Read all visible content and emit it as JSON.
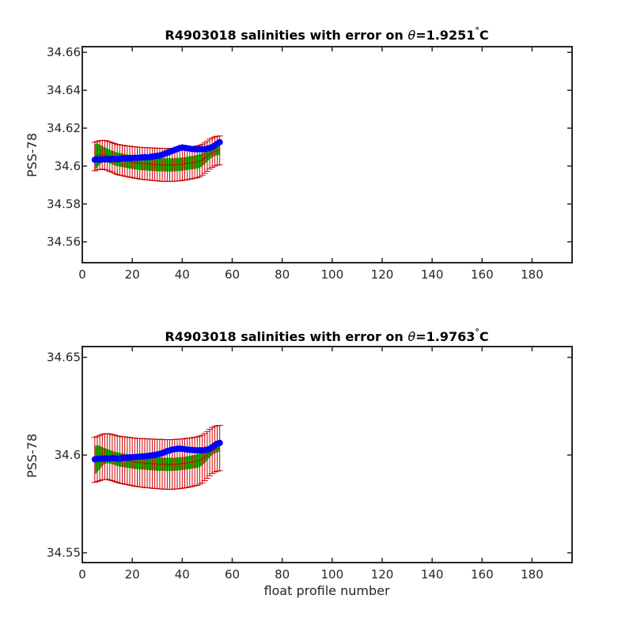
{
  "chart_data": [
    {
      "type": "line",
      "title_prefix": "R4903018 salinities with error on ",
      "title_theta": "θ",
      "title_suffix": "=1.9251",
      "title_degree": "°",
      "title_unit": "C",
      "xlabel": "",
      "ylabel": "PSS-78",
      "xlim": [
        0,
        196
      ],
      "ylim": [
        34.549,
        34.663
      ],
      "x_ticks": [
        0,
        20,
        40,
        60,
        80,
        100,
        120,
        140,
        160,
        180
      ],
      "x_tick_labels": [
        "0",
        "20",
        "40",
        "60",
        "80",
        "100",
        "120",
        "140",
        "160",
        "180"
      ],
      "y_ticks": [
        34.56,
        34.58,
        34.6,
        34.62,
        34.64,
        34.66
      ],
      "y_tick_labels": [
        "34.56",
        "34.58",
        "34.6",
        "34.62",
        "34.64",
        "34.66"
      ],
      "grid": false,
      "colors": {
        "mapped": "#0000ff",
        "band": "#00c000",
        "error": "#cc0000",
        "axes": "#262626"
      },
      "x": [
        5,
        6,
        7,
        8,
        9,
        10,
        11,
        12,
        13,
        14,
        15,
        16,
        17,
        18,
        19,
        20,
        21,
        22,
        23,
        24,
        25,
        26,
        27,
        28,
        29,
        30,
        31,
        32,
        33,
        34,
        35,
        36,
        37,
        38,
        39,
        40,
        41,
        42,
        43,
        44,
        45,
        46,
        47,
        48,
        49,
        50,
        51,
        52,
        53,
        54,
        55
      ],
      "series": [
        {
          "role": "mapped",
          "values": [
            34.6033,
            34.6035,
            34.6034,
            34.6036,
            34.6035,
            34.6037,
            34.6036,
            34.6038,
            34.6037,
            34.6036,
            34.6038,
            34.604,
            34.6041,
            34.604,
            34.6042,
            34.6043,
            34.6044,
            34.6043,
            34.6045,
            34.6046,
            34.6047,
            34.6046,
            34.6048,
            34.605,
            34.6052,
            34.6054,
            34.6056,
            34.606,
            34.6065,
            34.607,
            34.6075,
            34.608,
            34.6085,
            34.609,
            34.6095,
            34.6098,
            34.6096,
            34.6094,
            34.6092,
            34.609,
            34.6089,
            34.6088,
            34.6089,
            34.6088,
            34.609,
            34.6092,
            34.6095,
            34.61,
            34.6108,
            34.6118,
            34.6126
          ]
        },
        {
          "role": "band_upper",
          "values": [
            34.6115,
            34.6118,
            34.6112,
            34.6105,
            34.6098,
            34.6092,
            34.6085,
            34.608,
            34.6075,
            34.607,
            34.6068,
            34.6065,
            34.6062,
            34.606,
            34.6058,
            34.6056,
            34.6054,
            34.6052,
            34.605,
            34.6049,
            34.6048,
            34.6047,
            34.6046,
            34.6045,
            34.6044,
            34.6043,
            34.6042,
            34.6041,
            34.604,
            34.604,
            34.604,
            34.604,
            34.6041,
            34.6042,
            34.6043,
            34.6044,
            34.6046,
            34.6048,
            34.605,
            34.6052,
            34.6055,
            34.6058,
            34.6062,
            34.6066,
            34.6072,
            34.608,
            34.6088,
            34.6095,
            34.61,
            34.6104,
            34.6106
          ]
        },
        {
          "role": "band_lower",
          "values": [
            34.598,
            34.5995,
            34.601,
            34.602,
            34.6022,
            34.602,
            34.6015,
            34.601,
            34.6005,
            34.6,
            34.5998,
            34.5995,
            34.5993,
            34.599,
            34.5988,
            34.5986,
            34.5984,
            34.5982,
            34.598,
            34.5979,
            34.5978,
            34.5977,
            34.5976,
            34.5975,
            34.5974,
            34.5973,
            34.5973,
            34.5973,
            34.5972,
            34.5972,
            34.5972,
            34.5972,
            34.5973,
            34.5974,
            34.5975,
            34.5976,
            34.5978,
            34.598,
            34.5982,
            34.5984,
            34.5986,
            34.5988,
            34.5992,
            34.6,
            34.6012,
            34.6025,
            34.6038,
            34.6048,
            34.6054,
            34.6058,
            34.606
          ]
        },
        {
          "role": "error_center",
          "values": [
            34.605,
            34.6055,
            34.6058,
            34.606,
            34.6058,
            34.6055,
            34.605,
            34.6045,
            34.604,
            34.6035,
            34.6032,
            34.603,
            34.6027,
            34.6025,
            34.6023,
            34.6021,
            34.6019,
            34.6017,
            34.6015,
            34.6014,
            34.6013,
            34.6012,
            34.6011,
            34.601,
            34.6009,
            34.6008,
            34.6007,
            34.6006,
            34.6006,
            34.6006,
            34.6006,
            34.6006,
            34.6007,
            34.6008,
            34.6009,
            34.601,
            34.6012,
            34.6014,
            34.6016,
            34.6018,
            34.602,
            34.6022,
            34.6026,
            34.6033,
            34.6042,
            34.6052,
            34.6063,
            34.6071,
            34.6077,
            34.6081,
            34.6083
          ]
        },
        {
          "role": "error_half",
          "values": [
            0.0075,
            0.0075,
            0.0076,
            0.0076,
            0.0077,
            0.0077,
            0.0078,
            0.0078,
            0.0079,
            0.0079,
            0.008,
            0.008,
            0.0081,
            0.0081,
            0.0082,
            0.0082,
            0.0083,
            0.0083,
            0.0084,
            0.0084,
            0.0085,
            0.0085,
            0.0085,
            0.0086,
            0.0086,
            0.0086,
            0.0087,
            0.0087,
            0.0087,
            0.0087,
            0.0087,
            0.0087,
            0.0087,
            0.0087,
            0.0087,
            0.0086,
            0.0086,
            0.0086,
            0.0085,
            0.0085,
            0.0084,
            0.0084,
            0.0083,
            0.0082,
            0.0081,
            0.008,
            0.0079,
            0.0078,
            0.0077,
            0.0076,
            0.0076
          ]
        }
      ]
    },
    {
      "type": "line",
      "title_prefix": "R4903018 salinities with error on ",
      "title_theta": "θ",
      "title_suffix": "=1.9763",
      "title_degree": "°",
      "title_unit": "C",
      "xlabel": "float profile number",
      "ylabel": "PSS-78",
      "xlim": [
        0,
        196
      ],
      "ylim": [
        34.545,
        34.6555
      ],
      "x_ticks": [
        0,
        20,
        40,
        60,
        80,
        100,
        120,
        140,
        160,
        180
      ],
      "x_tick_labels": [
        "0",
        "20",
        "40",
        "60",
        "80",
        "100",
        "120",
        "140",
        "160",
        "180"
      ],
      "y_ticks": [
        34.55,
        34.6,
        34.65
      ],
      "y_tick_labels": [
        "34.55",
        "34.6",
        "34.65"
      ],
      "grid": false,
      "colors": {
        "mapped": "#0000ff",
        "band": "#00c000",
        "error": "#cc0000",
        "axes": "#262626"
      },
      "x": [
        5,
        6,
        7,
        8,
        9,
        10,
        11,
        12,
        13,
        14,
        15,
        16,
        17,
        18,
        19,
        20,
        21,
        22,
        23,
        24,
        25,
        26,
        27,
        28,
        29,
        30,
        31,
        32,
        33,
        34,
        35,
        36,
        37,
        38,
        39,
        40,
        41,
        42,
        43,
        44,
        45,
        46,
        47,
        48,
        49,
        50,
        51,
        52,
        53,
        54,
        55
      ],
      "series": [
        {
          "role": "mapped",
          "values": [
            34.5978,
            34.598,
            34.5981,
            34.5982,
            34.5981,
            34.5983,
            34.5982,
            34.5984,
            34.5983,
            34.5982,
            34.5981,
            34.5985,
            34.5986,
            34.5987,
            34.5988,
            34.5989,
            34.599,
            34.5991,
            34.5992,
            34.5993,
            34.5994,
            34.5995,
            34.5997,
            34.5999,
            34.6001,
            34.6003,
            34.6006,
            34.601,
            34.6015,
            34.602,
            34.6024,
            34.6028,
            34.603,
            34.6032,
            34.6033,
            34.6032,
            34.603,
            34.6028,
            34.6027,
            34.6026,
            34.6025,
            34.6024,
            34.6025,
            34.6024,
            34.6026,
            34.6028,
            34.6032,
            34.604,
            34.605,
            34.6058,
            34.6062
          ]
        },
        {
          "role": "band_upper",
          "values": [
            34.6045,
            34.605,
            34.6046,
            34.604,
            34.6035,
            34.603,
            34.6025,
            34.602,
            34.6016,
            34.6012,
            34.601,
            34.6008,
            34.6006,
            34.6004,
            34.6002,
            34.6,
            34.5998,
            34.5996,
            34.5995,
            34.5994,
            34.5993,
            34.5992,
            34.5991,
            34.599,
            34.5989,
            34.5988,
            34.5987,
            34.5986,
            34.5985,
            34.5985,
            34.5985,
            34.5985,
            34.5986,
            34.5987,
            34.5988,
            34.5989,
            34.5991,
            34.5993,
            34.5995,
            34.5997,
            34.6,
            34.6003,
            34.6008,
            34.6013,
            34.602,
            34.6028,
            34.6037,
            34.6045,
            34.605,
            34.6053,
            34.6055
          ]
        },
        {
          "role": "band_lower",
          "values": [
            34.59,
            34.5915,
            34.593,
            34.5945,
            34.5955,
            34.596,
            34.5958,
            34.5954,
            34.595,
            34.5945,
            34.5942,
            34.594,
            34.5938,
            34.5936,
            34.5934,
            34.5932,
            34.593,
            34.5929,
            34.5928,
            34.5927,
            34.5926,
            34.5925,
            34.5924,
            34.5923,
            34.5922,
            34.5921,
            34.5921,
            34.5921,
            34.592,
            34.592,
            34.592,
            34.592,
            34.5921,
            34.5922,
            34.5923,
            34.5924,
            34.5926,
            34.5928,
            34.593,
            34.5932,
            34.5934,
            34.5936,
            34.594,
            34.5948,
            34.596,
            34.5975,
            34.599,
            34.6002,
            34.601,
            34.6015,
            34.6018
          ]
        },
        {
          "role": "error_center",
          "values": [
            34.5975,
            34.598,
            34.5985,
            34.599,
            34.5992,
            34.5993,
            34.599,
            34.5987,
            34.5983,
            34.5979,
            34.5976,
            34.5974,
            34.5972,
            34.597,
            34.5968,
            34.5966,
            34.5964,
            34.5962,
            34.5961,
            34.596,
            34.5959,
            34.5958,
            34.5957,
            34.5956,
            34.5955,
            34.5954,
            34.5954,
            34.5953,
            34.5952,
            34.5952,
            34.5952,
            34.5952,
            34.5953,
            34.5954,
            34.5955,
            34.5956,
            34.5958,
            34.596,
            34.5962,
            34.5964,
            34.5967,
            34.5969,
            34.5974,
            34.598,
            34.599,
            34.6001,
            34.6013,
            34.6023,
            34.603,
            34.6034,
            34.6036
          ]
        },
        {
          "role": "error_half",
          "values": [
            0.0115,
            0.0115,
            0.0116,
            0.0116,
            0.0117,
            0.0117,
            0.0118,
            0.0118,
            0.0119,
            0.0119,
            0.012,
            0.012,
            0.0121,
            0.0121,
            0.0122,
            0.0122,
            0.0123,
            0.0123,
            0.0124,
            0.0124,
            0.0125,
            0.0125,
            0.0125,
            0.0126,
            0.0126,
            0.0126,
            0.0127,
            0.0127,
            0.0127,
            0.0127,
            0.0127,
            0.0127,
            0.0127,
            0.0127,
            0.0127,
            0.0126,
            0.0126,
            0.0126,
            0.0125,
            0.0125,
            0.0124,
            0.0124,
            0.0123,
            0.0122,
            0.0121,
            0.012,
            0.0119,
            0.0118,
            0.0117,
            0.0116,
            0.0116
          ]
        }
      ]
    }
  ]
}
